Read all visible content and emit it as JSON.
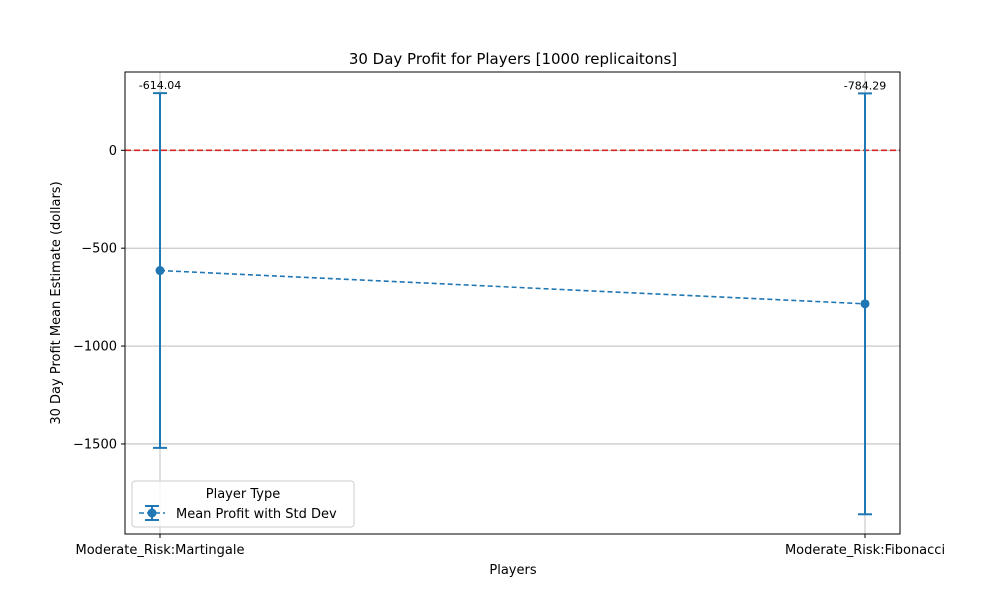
{
  "chart_data": {
    "type": "line",
    "title": "30 Day Profit for Players [1000 replicaitons]",
    "xlabel": "Players",
    "ylabel": "30 Day Profit Mean Estimate (dollars)",
    "categories": [
      "Moderate_Risk:Martingale",
      "Moderate_Risk:Fibonacci"
    ],
    "series": [
      {
        "name": "Mean Profit with Std Dev",
        "values": [
          -614.04,
          -784.29
        ],
        "std_dev": [
          906,
          1075
        ],
        "data_labels": [
          "-614.04",
          "-784.29"
        ],
        "color": "#1f77b4",
        "line_style": "dashed",
        "marker": "circle"
      }
    ],
    "reference_line": {
      "y": 0,
      "color": "#d62728",
      "line_style": "dashed"
    },
    "ylim": [
      -1960,
      400
    ],
    "yticks": [
      0,
      -500,
      -1000,
      -1500
    ],
    "ytick_labels": [
      "0",
      "−500",
      "−1000",
      "−1500"
    ],
    "grid": true,
    "legend": {
      "title": "Player Type",
      "placement": "lower-left"
    }
  }
}
